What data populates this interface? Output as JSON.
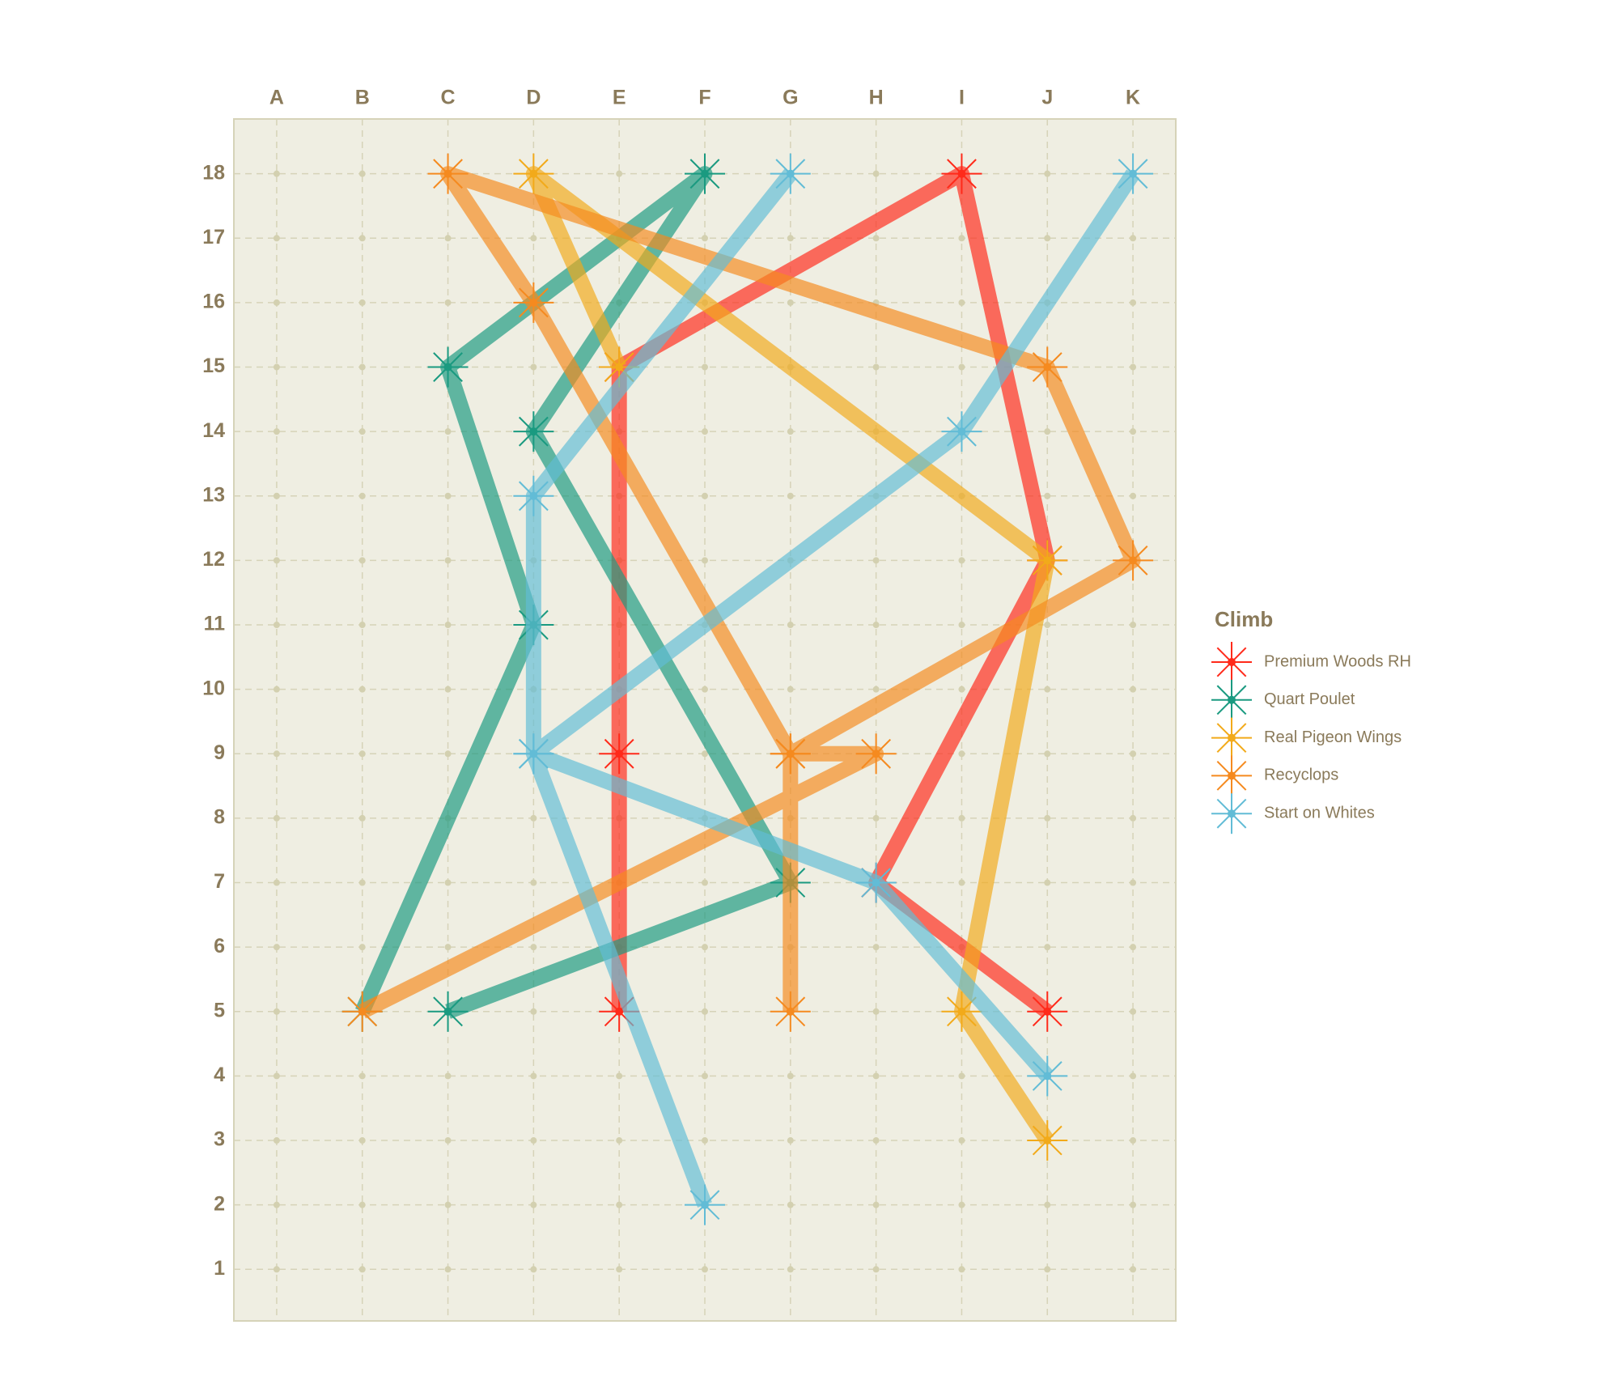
{
  "chart_data": {
    "type": "line",
    "categories": [
      "A",
      "B",
      "C",
      "D",
      "E",
      "F",
      "G",
      "H",
      "I",
      "J",
      "K"
    ],
    "ylim": [
      0.2,
      18.85
    ],
    "yticks": [
      1,
      2,
      3,
      4,
      5,
      6,
      7,
      8,
      9,
      10,
      11,
      12,
      13,
      14,
      15,
      16,
      17,
      18
    ],
    "grid": true,
    "legend_title": "Climb",
    "legend_position": "right",
    "series": [
      {
        "name": "Premium Woods RH",
        "color": "#ff2a1a",
        "x": [
          "E",
          "E",
          "E",
          "I",
          "J",
          "H",
          "J"
        ],
        "values": [
          5,
          9,
          15,
          18,
          12,
          7,
          5
        ]
      },
      {
        "name": "Quart Poulet",
        "color": "#1a9a80",
        "x": [
          "C",
          "G",
          "D",
          "F",
          "C",
          "D",
          "B"
        ],
        "values": [
          5,
          7,
          14,
          18,
          15,
          11,
          5
        ]
      },
      {
        "name": "Real Pigeon Wings",
        "color": "#f2aa1a",
        "x": [
          "E",
          "D",
          "J",
          "I",
          "J"
        ],
        "values": [
          15,
          18,
          12,
          5,
          3
        ]
      },
      {
        "name": "Recyclops",
        "color": "#f58a1f",
        "x": [
          "B",
          "H",
          "G",
          "K",
          "J",
          "C",
          "D",
          "G",
          "G"
        ],
        "values": [
          5,
          9,
          9,
          12,
          15,
          18,
          16,
          9,
          5
        ]
      },
      {
        "name": "Start on Whites",
        "color": "#62bcd6",
        "x": [
          "K",
          "I",
          "D",
          "H",
          "J",
          null,
          "G",
          "D",
          "D",
          "F"
        ],
        "values": [
          18,
          14,
          9,
          7,
          4,
          null,
          18,
          13,
          9,
          2
        ]
      }
    ]
  }
}
